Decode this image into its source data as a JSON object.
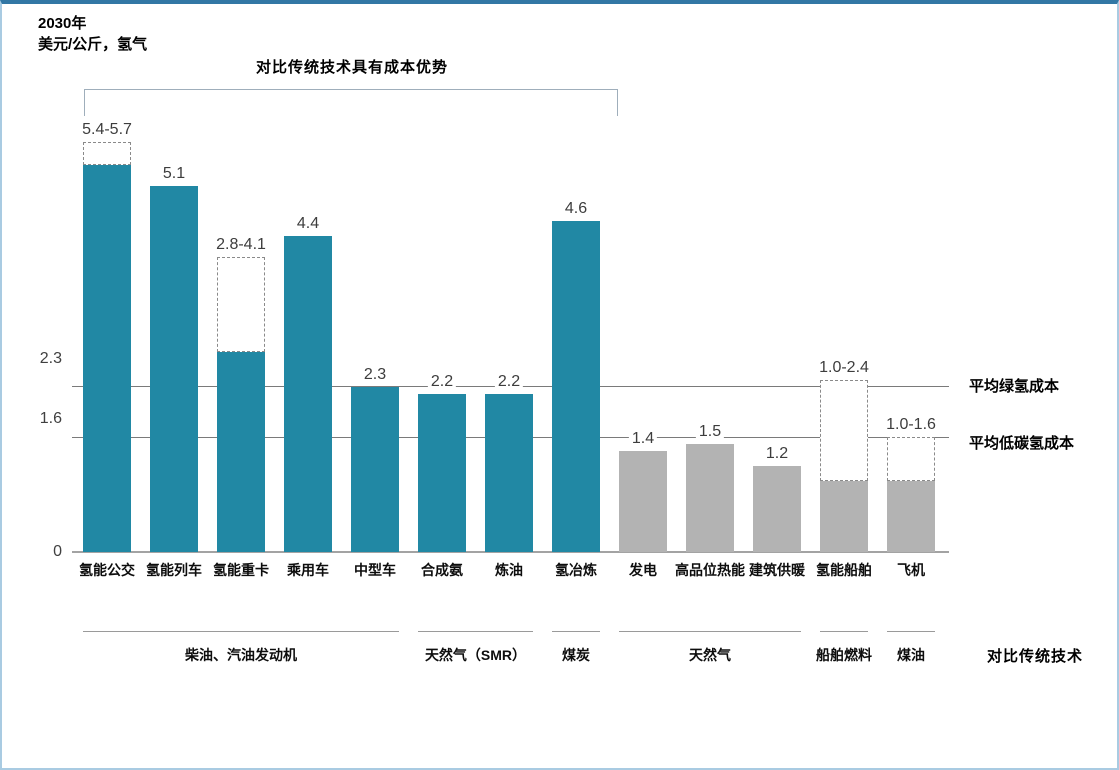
{
  "header": {
    "year": "2030年",
    "unit": "美元/公斤，氢气"
  },
  "annotation": {
    "label": "对比传统技术具有成本优势"
  },
  "axis": {
    "zero_label": "0"
  },
  "colors": {
    "teal_bar": "#2188a4",
    "gray_bar": "#b3b3b3",
    "top_border": "#3277a5",
    "side_border": "#a9cbe2"
  },
  "chart_data": {
    "type": "bar",
    "title": "2030年",
    "ylabel": "美元/公斤，氢气",
    "ylim": [
      0,
      6
    ],
    "grid": false,
    "annotation": "对比传统技术具有成本优势",
    "annotation_span_categories": [
      "氢能公交",
      "氢冶炼"
    ],
    "bars": [
      {
        "category": "氢能公交",
        "label": "5.4-5.7",
        "value": 5.4,
        "value_high": 5.7,
        "group": "teal"
      },
      {
        "category": "氢能列车",
        "label": "5.1",
        "value": 5.1,
        "value_high": null,
        "group": "teal"
      },
      {
        "category": "氢能重卡",
        "label": "2.8-4.1",
        "value": 2.8,
        "value_high": 4.1,
        "group": "teal"
      },
      {
        "category": "乘用车",
        "label": "4.4",
        "value": 4.4,
        "value_high": null,
        "group": "teal"
      },
      {
        "category": "中型车",
        "label": "2.3",
        "value": 2.3,
        "value_high": null,
        "group": "teal"
      },
      {
        "category": "合成氨",
        "label": "2.2",
        "value": 2.2,
        "value_high": null,
        "group": "teal"
      },
      {
        "category": "炼油",
        "label": "2.2",
        "value": 2.2,
        "value_high": null,
        "group": "teal"
      },
      {
        "category": "氢冶炼",
        "label": "4.6",
        "value": 4.6,
        "value_high": null,
        "group": "teal"
      },
      {
        "category": "发电",
        "label": "1.4",
        "value": 1.4,
        "value_high": null,
        "group": "gray"
      },
      {
        "category": "高品位热能",
        "label": "1.5",
        "value": 1.5,
        "value_high": null,
        "group": "gray"
      },
      {
        "category": "建筑供暖",
        "label": "1.2",
        "value": 1.2,
        "value_high": null,
        "group": "gray"
      },
      {
        "category": "氢能船舶",
        "label": "1.0-2.4",
        "value": 1.0,
        "value_high": 2.4,
        "group": "gray"
      },
      {
        "category": "飞机",
        "label": "1.0-1.6",
        "value": 1.0,
        "value_high": 1.6,
        "group": "gray"
      }
    ],
    "reference_lines": [
      {
        "value": 2.3,
        "tick": "2.3",
        "label": "平均绿氢成本"
      },
      {
        "value": 1.6,
        "tick": "1.6",
        "label": "平均低碳氢成本"
      }
    ],
    "comparison_groups": [
      {
        "label": "柴油、汽油发动机",
        "from": 0,
        "to": 4
      },
      {
        "label": "天然气（SMR）",
        "from": 5,
        "to": 6
      },
      {
        "label": "煤炭",
        "from": 7,
        "to": 7
      },
      {
        "label": "天然气",
        "from": 8,
        "to": 10
      },
      {
        "label": "船舶燃料",
        "from": 11,
        "to": 11
      },
      {
        "label": "煤油",
        "from": 12,
        "to": 12
      }
    ],
    "comparison_title": "对比传统技术"
  }
}
